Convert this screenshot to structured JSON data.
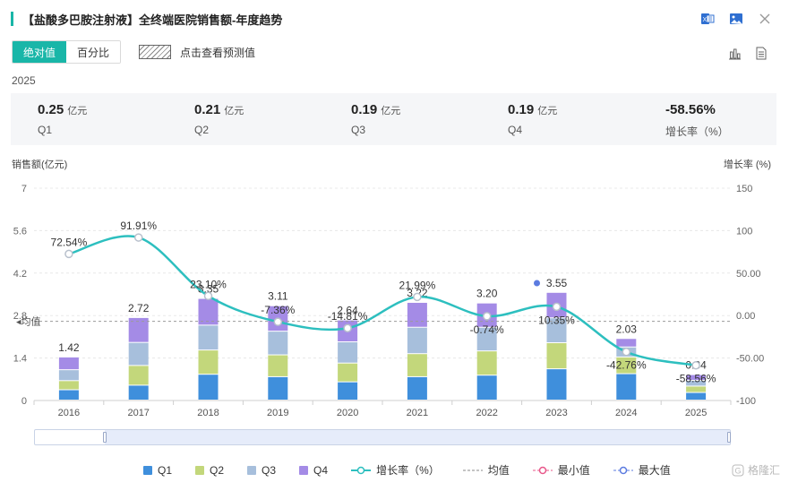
{
  "title": "【盐酸多巴胺注射液】全终端医院销售额-年度趋势",
  "toolbar": {
    "tab_absolute": "绝对值",
    "tab_percent": "百分比",
    "forecast_label": "点击查看预测值"
  },
  "icons": {
    "excel": "excel-icon",
    "image": "image-icon",
    "close": "close-icon",
    "bar_chart": "bar-chart-icon",
    "document": "document-icon"
  },
  "year": "2025",
  "summary": [
    {
      "value": "0.25",
      "unit": "亿元",
      "label": "Q1"
    },
    {
      "value": "0.21",
      "unit": "亿元",
      "label": "Q2"
    },
    {
      "value": "0.19",
      "unit": "亿元",
      "label": "Q3"
    },
    {
      "value": "0.19",
      "unit": "亿元",
      "label": "Q4"
    },
    {
      "value": "-58.56%",
      "unit": "",
      "label": "增长率（%）"
    }
  ],
  "legend": {
    "q1": "Q1",
    "q2": "Q2",
    "q3": "Q3",
    "q4": "Q4",
    "growth": "增长率（%）",
    "avg": "均值",
    "min": "最小值",
    "max": "最大值"
  },
  "watermark": "格隆汇",
  "colors": {
    "accent": "#19b6a8",
    "q1": "#3f8fdc",
    "q2": "#c3d77b",
    "q3": "#a7bfdc",
    "q4": "#a48be6",
    "growth": "#2dbfbf",
    "min": "#e8578a",
    "max": "#5b7be0"
  },
  "chart_data": {
    "type": "bar",
    "stacked": true,
    "categories": [
      "2016",
      "2017",
      "2018",
      "2019",
      "2020",
      "2021",
      "2022",
      "2023",
      "2024",
      "2025"
    ],
    "ylabel": "销售额(亿元)",
    "y2label": "增长率 (%)",
    "ylim": [
      0,
      7
    ],
    "yticks": [
      "0",
      "1.4",
      "2.8",
      "4.2",
      "5.6",
      "7"
    ],
    "y2lim": [
      -100,
      150
    ],
    "y2ticks": [
      "-100",
      "-50.00",
      "0.00",
      "50.00",
      "100",
      "150"
    ],
    "series": [
      {
        "name": "Q1",
        "values": [
          0.34,
          0.49,
          0.85,
          0.77,
          0.6,
          0.77,
          0.82,
          1.03,
          0.87,
          0.25
        ]
      },
      {
        "name": "Q2",
        "values": [
          0.3,
          0.65,
          0.8,
          0.72,
          0.62,
          0.76,
          0.8,
          0.86,
          0.55,
          0.21
        ]
      },
      {
        "name": "Q3",
        "values": [
          0.36,
          0.76,
          0.82,
          0.78,
          0.7,
          0.87,
          0.78,
          0.82,
          0.33,
          0.19
        ]
      },
      {
        "name": "Q4",
        "values": [
          0.42,
          0.82,
          0.88,
          0.84,
          0.72,
          0.82,
          0.8,
          0.84,
          0.28,
          0.19
        ]
      }
    ],
    "totals": [
      "1.42",
      "2.72",
      "3.35",
      "3.11",
      "2.64",
      "3.22",
      "3.20",
      "3.55",
      "2.03",
      "0.84"
    ],
    "growth": {
      "name": "增长率（%）",
      "values": [
        72.54,
        91.91,
        23.1,
        -7.36,
        -14.81,
        21.99,
        -0.74,
        10.35,
        -42.76,
        -58.56
      ],
      "labels": [
        "72.54%",
        "91.91%",
        "23.10%",
        "-7.36%",
        "-14.81%",
        "21.99%",
        "-0.74%",
        "10.35%",
        "-42.76%",
        "-58.56%"
      ]
    },
    "average": {
      "label": "均值",
      "value": 2.61
    }
  }
}
